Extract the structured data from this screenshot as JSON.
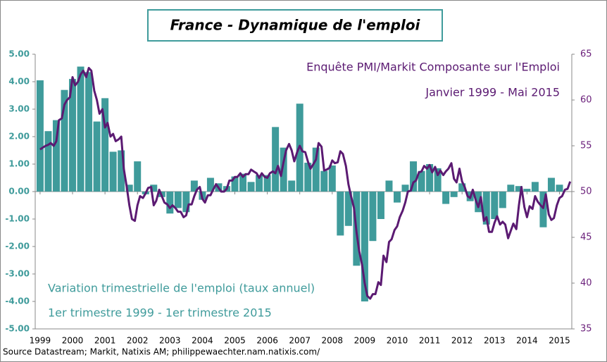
{
  "chart_data": {
    "type": "combo",
    "title": "France - Dynamique de l'emploi",
    "annotations": [
      "Enquête PMI/Markit Composante sur l'Emploi",
      "Janvier 1999 - Mai 2015",
      "Variation trimestrielle de l'emploi (taux annuel)",
      "1er trimestre 1999 - 1er trimestre 2015"
    ],
    "source": "Source Datastream; Markit, Natixis AM; philippewaechter.nam.natixis.com/",
    "xlim": [
      1998.85,
      2015.38
    ],
    "xticks": [
      1999,
      2000,
      2001,
      2002,
      2003,
      2004,
      2005,
      2006,
      2007,
      2008,
      2009,
      2010,
      2011,
      2012,
      2013,
      2014,
      2015
    ],
    "ylim": [
      -5,
      5
    ],
    "yticks": [
      {
        "value": -5,
        "label": "-5.00"
      },
      {
        "value": -4,
        "label": "-4.00"
      },
      {
        "value": -3,
        "label": "-3.00"
      },
      {
        "value": -2,
        "label": "-2.00"
      },
      {
        "value": -1,
        "label": "-1.00"
      },
      {
        "value": 0,
        "label": "0.00"
      },
      {
        "value": 1,
        "label": "1.00"
      },
      {
        "value": 2,
        "label": "2.00"
      },
      {
        "value": 3,
        "label": "3.00"
      },
      {
        "value": 4,
        "label": "4.00"
      },
      {
        "value": 5,
        "label": "5.00"
      }
    ],
    "y2lim": [
      35,
      65
    ],
    "y2ticks": [
      35,
      40,
      45,
      50,
      55,
      60,
      65
    ],
    "series": [
      {
        "type": "bar",
        "color": "#3f9b9b",
        "x": [
          1999,
          1999.25,
          1999.5,
          1999.75,
          2000,
          2000.25,
          2000.5,
          2000.75,
          2001,
          2001.25,
          2001.5,
          2001.75,
          2002,
          2002.25,
          2002.5,
          2002.75,
          2003,
          2003.25,
          2003.5,
          2003.75,
          2004,
          2004.25,
          2004.5,
          2004.75,
          2005,
          2005.25,
          2005.5,
          2005.75,
          2006,
          2006.25,
          2006.5,
          2006.75,
          2007,
          2007.25,
          2007.5,
          2007.75,
          2008,
          2008.25,
          2008.5,
          2008.75,
          2009,
          2009.25,
          2009.5,
          2009.75,
          2010,
          2010.25,
          2010.5,
          2010.75,
          2011,
          2011.25,
          2011.5,
          2011.75,
          2012,
          2012.25,
          2012.5,
          2012.75,
          2013,
          2013.25,
          2013.5,
          2013.75,
          2014,
          2014.25,
          2014.5,
          2014.75,
          2015
        ],
        "values": [
          4.05,
          2.2,
          2.6,
          3.7,
          4.1,
          4.55,
          4.35,
          2.55,
          3.4,
          1.45,
          1.5,
          0.25,
          1.1,
          -0.1,
          0.25,
          -0.2,
          -0.8,
          -0.6,
          -0.75,
          0.4,
          -0.3,
          0.5,
          0.3,
          0.2,
          0.55,
          0.65,
          0.35,
          0.6,
          0.6,
          2.35,
          1.6,
          0.4,
          3.2,
          1.05,
          1.6,
          0.75,
          0.95,
          -1.6,
          -1.25,
          -2.7,
          -4.0,
          -1.8,
          -1.0,
          0.4,
          -0.4,
          0.25,
          1.1,
          0.75,
          1.0,
          0.85,
          -0.45,
          -0.2,
          0.3,
          -0.35,
          -0.75,
          -1.2,
          -1.0,
          -0.6,
          0.25,
          0.2,
          0.1,
          0.35,
          -1.3,
          0.5,
          0.25
        ]
      },
      {
        "type": "line",
        "color": "#5b1a72",
        "axis": "y2",
        "x": [
          1999,
          1999.08,
          1999.17,
          1999.25,
          1999.33,
          1999.42,
          1999.5,
          1999.58,
          1999.67,
          1999.75,
          1999.83,
          1999.92,
          2000,
          2000.08,
          2000.17,
          2000.25,
          2000.33,
          2000.42,
          2000.5,
          2000.58,
          2000.67,
          2000.75,
          2000.83,
          2000.92,
          2001,
          2001.08,
          2001.17,
          2001.25,
          2001.33,
          2001.42,
          2001.5,
          2001.58,
          2001.67,
          2001.75,
          2001.83,
          2001.92,
          2002,
          2002.08,
          2002.17,
          2002.25,
          2002.33,
          2002.42,
          2002.5,
          2002.58,
          2002.67,
          2002.75,
          2002.83,
          2002.92,
          2003,
          2003.08,
          2003.17,
          2003.25,
          2003.33,
          2003.42,
          2003.5,
          2003.58,
          2003.67,
          2003.75,
          2003.83,
          2003.92,
          2004,
          2004.08,
          2004.17,
          2004.25,
          2004.33,
          2004.42,
          2004.5,
          2004.58,
          2004.67,
          2004.75,
          2004.83,
          2004.92,
          2005,
          2005.08,
          2005.17,
          2005.25,
          2005.33,
          2005.42,
          2005.5,
          2005.58,
          2005.67,
          2005.75,
          2005.83,
          2005.92,
          2006,
          2006.08,
          2006.17,
          2006.25,
          2006.33,
          2006.42,
          2006.5,
          2006.58,
          2006.67,
          2006.75,
          2006.83,
          2006.92,
          2007,
          2007.08,
          2007.17,
          2007.25,
          2007.33,
          2007.42,
          2007.5,
          2007.58,
          2007.67,
          2007.75,
          2007.83,
          2007.92,
          2008,
          2008.08,
          2008.17,
          2008.25,
          2008.33,
          2008.42,
          2008.5,
          2008.58,
          2008.67,
          2008.75,
          2008.83,
          2008.92,
          2009,
          2009.08,
          2009.17,
          2009.25,
          2009.33,
          2009.42,
          2009.5,
          2009.58,
          2009.67,
          2009.75,
          2009.83,
          2009.92,
          2010,
          2010.08,
          2010.17,
          2010.25,
          2010.33,
          2010.42,
          2010.5,
          2010.58,
          2010.67,
          2010.75,
          2010.83,
          2010.92,
          2011,
          2011.08,
          2011.17,
          2011.25,
          2011.33,
          2011.42,
          2011.5,
          2011.58,
          2011.67,
          2011.75,
          2011.83,
          2011.92,
          2012,
          2012.08,
          2012.17,
          2012.25,
          2012.33,
          2012.42,
          2012.5,
          2012.58,
          2012.67,
          2012.75,
          2012.83,
          2012.92,
          2013,
          2013.08,
          2013.17,
          2013.25,
          2013.33,
          2013.42,
          2013.5,
          2013.58,
          2013.67,
          2013.75,
          2013.83,
          2013.92,
          2014,
          2014.08,
          2014.17,
          2014.25,
          2014.33,
          2014.42,
          2014.5,
          2014.58,
          2014.67,
          2014.75,
          2014.83,
          2014.92,
          2015,
          2015.08,
          2015.17,
          2015.25,
          2015.33
        ],
        "values": [
          54.6,
          54.8,
          55,
          55.1,
          55.3,
          55,
          55.5,
          57.8,
          58,
          59.5,
          60,
          60.3,
          62.5,
          61.6,
          62,
          62.8,
          63.2,
          62.5,
          63.5,
          63.2,
          61,
          60,
          58.5,
          59,
          57,
          57.5,
          56,
          56.3,
          55.5,
          55.7,
          56,
          52.5,
          50.5,
          48.5,
          47,
          46.8,
          48.5,
          49.5,
          49.3,
          49.8,
          50.4,
          50.5,
          48.5,
          49,
          50.2,
          49.5,
          48.8,
          48.6,
          48.2,
          48.5,
          48.2,
          47.8,
          47.8,
          47.2,
          47.4,
          48.6,
          48.6,
          49.5,
          50.2,
          50.5,
          49.2,
          48.8,
          49.6,
          49.6,
          50.2,
          50.8,
          50.4,
          50,
          50,
          50.3,
          51.2,
          51.2,
          51.6,
          51.6,
          52,
          51.6,
          51.9,
          51.9,
          52.4,
          52.2,
          52,
          51.5,
          52,
          51.6,
          51.5,
          52,
          52.2,
          52,
          52.8,
          51.7,
          53.2,
          54.5,
          55.2,
          54.5,
          53.3,
          54.3,
          55,
          54.4,
          54.3,
          53.3,
          52.5,
          53,
          53.5,
          55.3,
          54.9,
          52.3,
          52.4,
          52.6,
          53.4,
          53.1,
          53.2,
          54.4,
          54.1,
          52.8,
          50.8,
          49.5,
          48.2,
          45.5,
          43.5,
          42,
          40,
          38.6,
          38.3,
          38.8,
          38.8,
          40.1,
          39.8,
          43,
          42.3,
          44.5,
          44.8,
          45.8,
          46.2,
          47.2,
          47.9,
          48.8,
          50,
          50.1,
          51,
          51.2,
          52.1,
          52.2,
          52.8,
          52.5,
          52.9,
          52.1,
          52.7,
          51.8,
          52.3,
          51.8,
          52.2,
          52.5,
          53.1,
          51.4,
          51,
          52.5,
          51.1,
          50.5,
          49.5,
          49.3,
          50.2,
          49.1,
          48.3,
          49.4,
          46.8,
          47.2,
          45.6,
          45.6,
          46.6,
          47.3,
          46.4,
          46.7,
          46.4,
          44.9,
          45.7,
          46.5,
          45.9,
          48.5,
          50.5,
          48.3,
          47.2,
          48.4,
          48.1,
          49.5,
          48.9,
          48.5,
          48.2,
          49.7,
          47.5,
          46.9,
          47.1,
          48.5,
          49.3,
          49.5,
          50.2,
          50.3,
          51.1
        ]
      }
    ]
  }
}
